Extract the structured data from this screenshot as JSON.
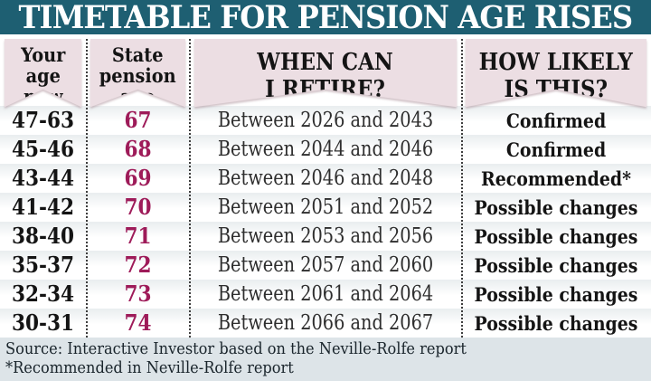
{
  "title": "TIMETABLE FOR PENSION AGE RISES",
  "columns": [
    {
      "label": "Your\nage\nnow"
    },
    {
      "label": "State\npension\nage"
    },
    {
      "label": "WHEN CAN\nI RETIRE?"
    },
    {
      "label": "HOW LIKELY\nIS THIS?"
    }
  ],
  "chart_data": {
    "type": "table",
    "title": "TIMETABLE FOR PENSION AGE RISES",
    "columns": [
      "Your age now",
      "State pension age",
      "WHEN CAN I RETIRE?",
      "HOW LIKELY IS THIS?"
    ],
    "rows": [
      [
        "47-63",
        67,
        "Between 2026 and 2043",
        "Confirmed"
      ],
      [
        "45-46",
        68,
        "Between 2044 and 2046",
        "Confirmed"
      ],
      [
        "43-44",
        69,
        "Between 2046 and 2048",
        "Recommended*"
      ],
      [
        "41-42",
        70,
        "Between 2051 and 2052",
        "Possible changes"
      ],
      [
        "38-40",
        71,
        "Between 2053 and 2056",
        "Possible changes"
      ],
      [
        "35-37",
        72,
        "Between 2057 and 2060",
        "Possible changes"
      ],
      [
        "32-34",
        73,
        "Between 2061 and 2064",
        "Possible changes"
      ],
      [
        "30-31",
        74,
        "Between 2066 and 2067",
        "Possible changes"
      ]
    ]
  },
  "rows": [
    {
      "age_now": "47-63",
      "pension_age": "67",
      "retire": "Between 2026 and 2043",
      "likelihood": "Confirmed"
    },
    {
      "age_now": "45-46",
      "pension_age": "68",
      "retire": "Between 2044 and 2046",
      "likelihood": "Confirmed"
    },
    {
      "age_now": "43-44",
      "pension_age": "69",
      "retire": "Between 2046 and 2048",
      "likelihood": "Recommended*"
    },
    {
      "age_now": "41-42",
      "pension_age": "70",
      "retire": "Between 2051 and 2052",
      "likelihood": "Possible changes"
    },
    {
      "age_now": "38-40",
      "pension_age": "71",
      "retire": "Between 2053 and 2056",
      "likelihood": "Possible changes"
    },
    {
      "age_now": "35-37",
      "pension_age": "72",
      "retire": "Between 2057 and 2060",
      "likelihood": "Possible changes"
    },
    {
      "age_now": "32-34",
      "pension_age": "73",
      "retire": "Between 2061 and 2064",
      "likelihood": "Possible changes"
    },
    {
      "age_now": "30-31",
      "pension_age": "74",
      "retire": "Between 2066 and 2067",
      "likelihood": "Possible changes"
    }
  ],
  "footer": {
    "source": "Source: Interactive Investor based on the Neville-Rolfe report",
    "note": "*Recommended in Neville-Rolfe report"
  },
  "colors": {
    "title-bg": "#1e5f72",
    "title-text": "#ffffff",
    "header-bg": "#ecdee3",
    "header-text": "#141414",
    "pension-age": "#9e1b59",
    "body-text": "#141414",
    "retire-text": "#2e2e2e",
    "dotted-line": "#3d3d3d",
    "footer-bg": "#dde4e8",
    "footer-text": "#19242b",
    "row-shade": "#e9edef"
  }
}
